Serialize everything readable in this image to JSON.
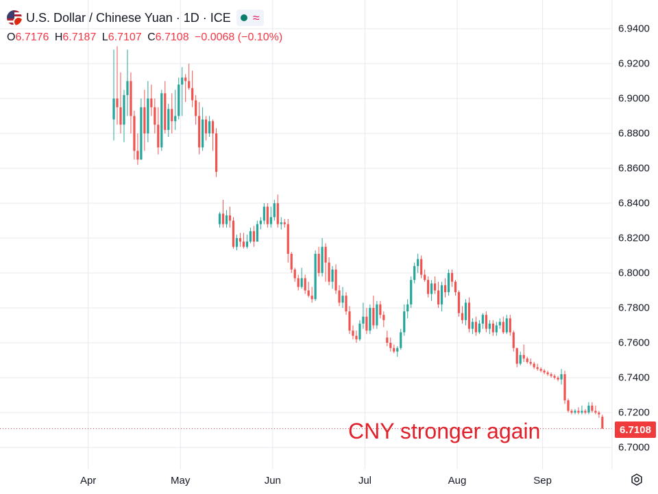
{
  "header": {
    "title": "U.S. Dollar / Chinese Yuan · 1D · ICE",
    "ohlc": [
      {
        "k": "O",
        "v": "6.7176"
      },
      {
        "k": "H",
        "v": "6.7187"
      },
      {
        "k": "L",
        "v": "6.7107"
      },
      {
        "k": "C",
        "v": "6.7108"
      }
    ],
    "change": "−0.0068 (−0.10%)"
  },
  "annotation": "CNY stronger again",
  "last_price": "6.7108",
  "colors": {
    "up": "#26a69a",
    "down": "#ef5350",
    "grid": "#e6e8ee",
    "tag": "#ef3b3b",
    "annotation": "#e0202a"
  },
  "chart_data": {
    "type": "candlestick",
    "symbol": "U.S. Dollar / Chinese Yuan",
    "interval": "1D",
    "exchange": "ICE",
    "y_ticks": [
      "6.9400",
      "6.9200",
      "6.9000",
      "6.8800",
      "6.8600",
      "6.8400",
      "6.8200",
      "6.8000",
      "6.7800",
      "6.7600",
      "6.7400",
      "6.7200",
      "6.7000"
    ],
    "ylim": [
      6.694,
      6.946
    ],
    "x_ticks": [
      {
        "label": "Apr",
        "index": 25
      },
      {
        "label": "May",
        "index": 52
      },
      {
        "label": "Jun",
        "index": 79
      },
      {
        "label": "Jul",
        "index": 106
      },
      {
        "label": "Aug",
        "index": 133
      },
      {
        "label": "Sep",
        "index": 158
      }
    ],
    "total_slots": 176,
    "last_price": 6.7108,
    "candles": [
      [
        6.888,
        6.928,
        6.876,
        6.9
      ],
      [
        6.9,
        6.93,
        6.885,
        6.895
      ],
      [
        6.895,
        6.915,
        6.88,
        6.885
      ],
      [
        6.885,
        6.905,
        6.875,
        6.902
      ],
      [
        6.902,
        6.928,
        6.89,
        6.91
      ],
      [
        6.91,
        6.915,
        6.88,
        6.89
      ],
      [
        6.89,
        6.893,
        6.865,
        6.87
      ],
      [
        6.87,
        6.88,
        6.862,
        6.865
      ],
      [
        6.865,
        6.9,
        6.865,
        6.895
      ],
      [
        6.895,
        6.905,
        6.87,
        6.88
      ],
      [
        6.88,
        6.91,
        6.875,
        6.9
      ],
      [
        6.9,
        6.908,
        6.89,
        6.895
      ],
      [
        6.895,
        6.9,
        6.88,
        6.885
      ],
      [
        6.885,
        6.895,
        6.868,
        6.872
      ],
      [
        6.872,
        6.905,
        6.87,
        6.903
      ],
      [
        6.903,
        6.91,
        6.88,
        6.882
      ],
      [
        6.882,
        6.897,
        6.878,
        6.894
      ],
      [
        6.894,
        6.903,
        6.88,
        6.887
      ],
      [
        6.887,
        6.905,
        6.882,
        6.89
      ],
      [
        6.89,
        6.912,
        6.888,
        6.908
      ],
      [
        6.908,
        6.918,
        6.89,
        6.912
      ],
      [
        6.912,
        6.914,
        6.898,
        6.91
      ],
      [
        6.91,
        6.92,
        6.905,
        6.906
      ],
      [
        6.906,
        6.916,
        6.895,
        6.899
      ],
      [
        6.899,
        6.902,
        6.885,
        6.89
      ],
      [
        6.89,
        6.898,
        6.868,
        6.872
      ],
      [
        6.872,
        6.895,
        6.87,
        6.888
      ],
      [
        6.888,
        6.89,
        6.876,
        6.88
      ],
      [
        6.88,
        6.89,
        6.878,
        6.887
      ],
      [
        6.887,
        6.888,
        6.87,
        6.88
      ],
      [
        6.88,
        6.883,
        6.855,
        6.858
      ],
      [
        6.828,
        6.835,
        6.826,
        6.834
      ],
      [
        6.834,
        6.842,
        6.826,
        6.828
      ],
      [
        6.828,
        6.836,
        6.826,
        6.833
      ],
      [
        6.833,
        6.838,
        6.826,
        6.83
      ],
      [
        6.83,
        6.832,
        6.814,
        6.815
      ],
      [
        6.815,
        6.822,
        6.813,
        6.82
      ],
      [
        6.82,
        6.823,
        6.815,
        6.818
      ],
      [
        6.818,
        6.823,
        6.814,
        6.815
      ],
      [
        6.815,
        6.822,
        6.814,
        6.818
      ],
      [
        6.818,
        6.826,
        6.817,
        6.824
      ],
      [
        6.824,
        6.827,
        6.815,
        6.818
      ],
      [
        6.818,
        6.83,
        6.818,
        6.828
      ],
      [
        6.828,
        6.832,
        6.825,
        6.83
      ],
      [
        6.83,
        6.84,
        6.828,
        6.838
      ],
      [
        6.838,
        6.84,
        6.826,
        6.828
      ],
      [
        6.828,
        6.838,
        6.826,
        6.832
      ],
      [
        6.832,
        6.842,
        6.83,
        6.84
      ],
      [
        6.84,
        6.845,
        6.826,
        6.828
      ],
      [
        6.828,
        6.832,
        6.825,
        6.829
      ],
      [
        6.829,
        6.831,
        6.826,
        6.828
      ],
      [
        6.828,
        6.831,
        6.806,
        6.811
      ],
      [
        6.811,
        6.812,
        6.8,
        6.802
      ],
      [
        6.802,
        6.803,
        6.795,
        6.797
      ],
      [
        6.797,
        6.799,
        6.79,
        6.792
      ],
      [
        6.792,
        6.803,
        6.791,
        6.797
      ],
      [
        6.797,
        6.799,
        6.788,
        6.79
      ],
      [
        6.79,
        6.795,
        6.786,
        6.787
      ],
      [
        6.787,
        6.792,
        6.783,
        6.785
      ],
      [
        6.785,
        6.813,
        6.784,
        6.811
      ],
      [
        6.811,
        6.815,
        6.798,
        6.8
      ],
      [
        6.8,
        6.82,
        6.798,
        6.815
      ],
      [
        6.815,
        6.817,
        6.795,
        6.806
      ],
      [
        6.806,
        6.809,
        6.793,
        6.795
      ],
      [
        6.795,
        6.804,
        6.791,
        6.802
      ],
      [
        6.802,
        6.805,
        6.788,
        6.79
      ],
      [
        6.79,
        6.793,
        6.781,
        6.783
      ],
      [
        6.783,
        6.792,
        6.78,
        6.787
      ],
      [
        6.787,
        6.789,
        6.776,
        6.778
      ],
      [
        6.778,
        6.781,
        6.765,
        6.767
      ],
      [
        6.767,
        6.77,
        6.762,
        6.764
      ],
      [
        6.764,
        6.767,
        6.76,
        6.762
      ],
      [
        6.762,
        6.773,
        6.761,
        6.771
      ],
      [
        6.771,
        6.783,
        6.768,
        6.775
      ],
      [
        6.775,
        6.78,
        6.765,
        6.767
      ],
      [
        6.767,
        6.782,
        6.765,
        6.78
      ],
      [
        6.78,
        6.787,
        6.768,
        6.77
      ],
      [
        6.77,
        6.784,
        6.768,
        6.782
      ],
      [
        6.782,
        6.784,
        6.774,
        6.776
      ],
      [
        6.776,
        6.778,
        6.769,
        6.773
      ],
      [
        6.763,
        6.767,
        6.758,
        6.76
      ],
      [
        6.76,
        6.763,
        6.755,
        6.757
      ],
      [
        6.757,
        6.759,
        6.754,
        6.755
      ],
      [
        6.755,
        6.758,
        6.752,
        6.757
      ],
      [
        6.757,
        6.768,
        6.756,
        6.766
      ],
      [
        6.766,
        6.782,
        6.764,
        6.778
      ],
      [
        6.778,
        6.785,
        6.774,
        6.782
      ],
      [
        6.782,
        6.798,
        6.78,
        6.796
      ],
      [
        6.796,
        6.806,
        6.794,
        6.804
      ],
      [
        6.804,
        6.811,
        6.8,
        6.808
      ],
      [
        6.808,
        6.81,
        6.797,
        6.799
      ],
      [
        6.799,
        6.802,
        6.795,
        6.796
      ],
      [
        6.796,
        6.798,
        6.786,
        6.788
      ],
      [
        6.788,
        6.796,
        6.784,
        6.794
      ],
      [
        6.794,
        6.798,
        6.788,
        6.79
      ],
      [
        6.79,
        6.795,
        6.78,
        6.782
      ],
      [
        6.782,
        6.795,
        6.778,
        6.793
      ],
      [
        6.793,
        6.797,
        6.786,
        6.789
      ],
      [
        6.789,
        6.802,
        6.787,
        6.8
      ],
      [
        6.8,
        6.802,
        6.792,
        6.795
      ],
      [
        6.795,
        6.796,
        6.787,
        6.789
      ],
      [
        6.789,
        6.79,
        6.775,
        6.777
      ],
      [
        6.777,
        6.781,
        6.771,
        6.773
      ],
      [
        6.773,
        6.785,
        6.77,
        6.783
      ],
      [
        6.783,
        6.786,
        6.766,
        6.768
      ],
      [
        6.768,
        6.774,
        6.765,
        6.772
      ],
      [
        6.772,
        6.775,
        6.764,
        6.766
      ],
      [
        6.766,
        6.773,
        6.765,
        6.771
      ],
      [
        6.771,
        6.777,
        6.768,
        6.776
      ],
      [
        6.776,
        6.778,
        6.766,
        6.768
      ],
      [
        6.768,
        6.773,
        6.765,
        6.771
      ],
      [
        6.771,
        6.773,
        6.764,
        6.766
      ],
      [
        6.766,
        6.772,
        6.764,
        6.77
      ],
      [
        6.77,
        6.774,
        6.768,
        6.772
      ],
      [
        6.772,
        6.775,
        6.765,
        6.766
      ],
      [
        6.766,
        6.776,
        6.765,
        6.774
      ],
      [
        6.774,
        6.776,
        6.764,
        6.766
      ],
      [
        6.766,
        6.767,
        6.755,
        6.757
      ],
      [
        6.757,
        6.757,
        6.746,
        6.748
      ],
      [
        6.748,
        6.755,
        6.747,
        6.753
      ],
      [
        6.753,
        6.759,
        6.749,
        6.751
      ],
      [
        6.751,
        6.752,
        6.748,
        6.749
      ],
      [
        6.749,
        6.751,
        6.747,
        6.748
      ],
      [
        6.748,
        6.749,
        6.745,
        6.746
      ],
      [
        6.746,
        6.748,
        6.744,
        6.745
      ],
      [
        6.745,
        6.746,
        6.743,
        6.744
      ],
      [
        6.744,
        6.745,
        6.742,
        6.743
      ],
      [
        6.743,
        6.744,
        6.741,
        6.742
      ],
      [
        6.742,
        6.743,
        6.74,
        6.741
      ],
      [
        6.741,
        6.742,
        6.739,
        6.74
      ],
      [
        6.74,
        6.741,
        6.738,
        6.739
      ],
      [
        6.739,
        6.745,
        6.736,
        6.742
      ],
      [
        6.742,
        6.744,
        6.725,
        6.727
      ],
      [
        6.727,
        6.728,
        6.72,
        6.721
      ],
      [
        6.721,
        6.722,
        6.719,
        6.72
      ],
      [
        6.72,
        6.722,
        6.719,
        6.721
      ],
      [
        6.721,
        6.723,
        6.719,
        6.72
      ],
      [
        6.72,
        6.724,
        6.719,
        6.721
      ],
      [
        6.721,
        6.722,
        6.719,
        6.72
      ],
      [
        6.72,
        6.726,
        6.719,
        6.724
      ],
      [
        6.724,
        6.726,
        6.72,
        6.721
      ],
      [
        6.721,
        6.724,
        6.719,
        6.72
      ],
      [
        6.72,
        6.721,
        6.717,
        6.719
      ],
      [
        6.7176,
        6.7187,
        6.7107,
        6.7108
      ]
    ]
  }
}
